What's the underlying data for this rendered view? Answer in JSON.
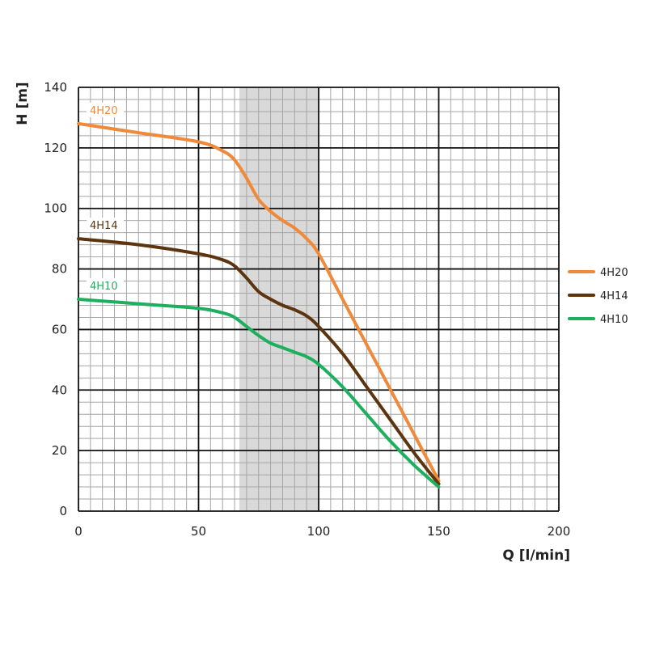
{
  "chart_data": {
    "type": "line",
    "title": "",
    "xlabel": "Q [l/min]",
    "ylabel": "H [m]",
    "xlim": [
      0,
      200
    ],
    "ylim": [
      0,
      140
    ],
    "x_ticks": [
      0,
      50,
      100,
      150,
      200
    ],
    "y_ticks": [
      0,
      20,
      40,
      60,
      80,
      100,
      120,
      140
    ],
    "x_tick_labels": [
      "0",
      "50",
      "100",
      "150",
      "200"
    ],
    "y_tick_labels": [
      "0",
      "20",
      "40",
      "60",
      "80",
      "100",
      "120",
      "140"
    ],
    "grid": true,
    "highlight_band": [
      67,
      100
    ],
    "legend_position": "right",
    "series": [
      {
        "name": "4H20",
        "color": "#EE8A3A",
        "x": [
          0,
          25,
          50,
          60,
          65,
          70,
          75,
          80,
          85,
          90,
          95,
          100,
          110,
          120,
          130,
          140,
          150
        ],
        "y": [
          128,
          125,
          122,
          119,
          116,
          110,
          103,
          99,
          96,
          93.5,
          90,
          85,
          70,
          55,
          40,
          25,
          10
        ]
      },
      {
        "name": "4H14",
        "color": "#5C3410",
        "x": [
          0,
          25,
          50,
          60,
          65,
          70,
          75,
          80,
          85,
          90,
          95,
          100,
          110,
          120,
          130,
          140,
          150
        ],
        "y": [
          90,
          88,
          85,
          83,
          81,
          77,
          72.5,
          70,
          68,
          66.5,
          64.5,
          61,
          52,
          41,
          30,
          19,
          9
        ]
      },
      {
        "name": "4H10",
        "color": "#1DAF5E",
        "x": [
          0,
          25,
          50,
          60,
          65,
          70,
          75,
          80,
          85,
          90,
          95,
          100,
          110,
          120,
          130,
          140,
          150
        ],
        "y": [
          70,
          68.5,
          67,
          65.5,
          64,
          61,
          58,
          55.5,
          54,
          52.5,
          51,
          48.5,
          41,
          32,
          23,
          15,
          8
        ]
      }
    ]
  }
}
